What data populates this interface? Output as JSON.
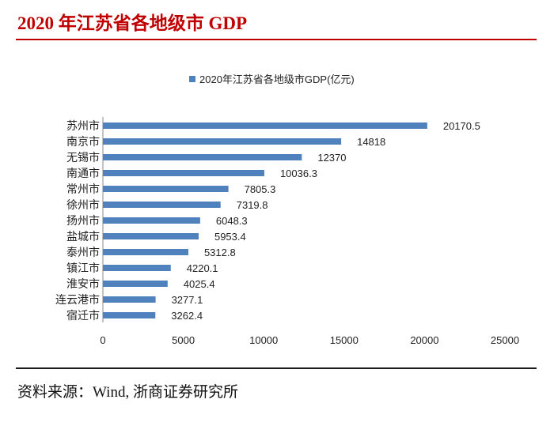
{
  "header": {
    "title": "2020 年江苏省各地级市 GDP"
  },
  "footer": {
    "source": "资料来源：Wind, 浙商证券研究所"
  },
  "colors": {
    "title": "#c00000",
    "bar": "#4f81bd"
  },
  "chart_data": {
    "type": "bar",
    "orientation": "horizontal",
    "title": "",
    "categories": [
      "苏州市",
      "南京市",
      "无锡市",
      "南通市",
      "常州市",
      "徐州市",
      "扬州市",
      "盐城市",
      "泰州市",
      "镇江市",
      "淮安市",
      "连云港市",
      "宿迁市"
    ],
    "series": [
      {
        "name": "2020年江苏省各地级市GDP(亿元)",
        "values": [
          20170.5,
          14818,
          12370,
          10036.3,
          7805.3,
          7319.8,
          6048.3,
          5953.4,
          5312.8,
          4220.1,
          4025.4,
          3277.1,
          3262.4
        ]
      }
    ],
    "value_labels": [
      "20170.5",
      "14818",
      "12370",
      "10036.3",
      "7805.3",
      "7319.8",
      "6048.3",
      "5953.4",
      "5312.8",
      "4220.1",
      "4025.4",
      "3277.1",
      "3262.4"
    ],
    "xlim": [
      0,
      25000
    ],
    "xticks": [
      0,
      5000,
      10000,
      15000,
      20000,
      25000
    ],
    "xtick_labels": [
      "0",
      "5000",
      "10000",
      "15000",
      "20000",
      "25000"
    ],
    "legend": "top",
    "grid": false,
    "xlabel": "",
    "ylabel": ""
  }
}
